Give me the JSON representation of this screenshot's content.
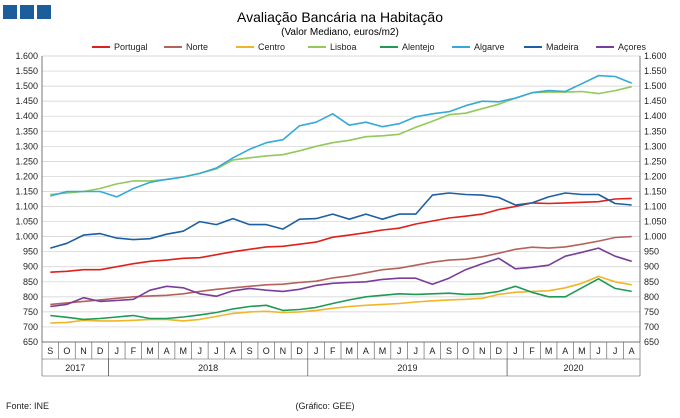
{
  "chart_data": {
    "type": "line",
    "title": "Avaliação Bancária na Habitação",
    "subtitle": "(Valor Mediano, euros/m2)",
    "ylim": [
      650,
      1600
    ],
    "ytick_step": 50,
    "months": [
      "S",
      "O",
      "N",
      "D",
      "J",
      "F",
      "M",
      "A",
      "M",
      "J",
      "J",
      "A",
      "S",
      "O",
      "N",
      "D",
      "J",
      "F",
      "M",
      "A",
      "M",
      "J",
      "J",
      "A",
      "S",
      "O",
      "N",
      "D",
      "J",
      "F",
      "M",
      "A",
      "M",
      "J",
      "J",
      "A"
    ],
    "years": [
      {
        "label": "2017",
        "start": 0,
        "count": 4
      },
      {
        "label": "2018",
        "start": 4,
        "count": 12
      },
      {
        "label": "2019",
        "start": 16,
        "count": 12
      },
      {
        "label": "2020",
        "start": 28,
        "count": 8
      }
    ],
    "series": [
      {
        "name": "Portugal",
        "color": "#e0201b",
        "values": [
          882,
          885,
          890,
          890,
          900,
          910,
          918,
          922,
          928,
          930,
          940,
          950,
          958,
          966,
          968,
          975,
          982,
          998,
          1005,
          1013,
          1022,
          1028,
          1042,
          1052,
          1062,
          1068,
          1075,
          1090,
          1100,
          1112,
          1110,
          1112,
          1114,
          1116,
          1125,
          1127
        ]
      },
      {
        "name": "Norte",
        "color": "#b4635a",
        "values": [
          775,
          780,
          785,
          790,
          795,
          800,
          803,
          805,
          810,
          818,
          825,
          830,
          835,
          840,
          842,
          848,
          852,
          863,
          870,
          880,
          890,
          895,
          905,
          915,
          922,
          925,
          933,
          945,
          958,
          965,
          962,
          966,
          975,
          985,
          997,
          1000
        ]
      },
      {
        "name": "Centro",
        "color": "#f0b529",
        "values": [
          713,
          715,
          722,
          720,
          720,
          722,
          725,
          725,
          720,
          725,
          735,
          745,
          750,
          752,
          748,
          750,
          755,
          762,
          768,
          772,
          775,
          778,
          783,
          787,
          790,
          792,
          795,
          808,
          815,
          818,
          820,
          830,
          845,
          868,
          850,
          840
        ]
      },
      {
        "name": "Lisboa",
        "color": "#92c95a",
        "values": [
          1140,
          1145,
          1150,
          1160,
          1175,
          1185,
          1185,
          1190,
          1198,
          1210,
          1225,
          1255,
          1262,
          1268,
          1272,
          1285,
          1300,
          1312,
          1320,
          1332,
          1335,
          1340,
          1363,
          1383,
          1405,
          1410,
          1425,
          1440,
          1460,
          1478,
          1480,
          1480,
          1482,
          1475,
          1485,
          1498
        ]
      },
      {
        "name": "Alentejo",
        "color": "#1e9a55",
        "values": [
          738,
          732,
          725,
          728,
          733,
          738,
          728,
          728,
          733,
          740,
          748,
          760,
          768,
          772,
          755,
          758,
          765,
          778,
          790,
          800,
          805,
          810,
          808,
          810,
          812,
          808,
          810,
          818,
          835,
          815,
          800,
          800,
          830,
          860,
          828,
          818
        ]
      },
      {
        "name": "Algarve",
        "color": "#35a9d9",
        "values": [
          1135,
          1150,
          1150,
          1150,
          1132,
          1160,
          1180,
          1190,
          1198,
          1210,
          1228,
          1262,
          1290,
          1312,
          1322,
          1368,
          1380,
          1408,
          1370,
          1380,
          1365,
          1375,
          1398,
          1408,
          1415,
          1435,
          1450,
          1448,
          1460,
          1478,
          1485,
          1482,
          1508,
          1535,
          1532,
          1510
        ]
      },
      {
        "name": "Madeira",
        "color": "#1d5fa0",
        "values": [
          962,
          978,
          1005,
          1010,
          995,
          990,
          993,
          1008,
          1018,
          1050,
          1040,
          1060,
          1040,
          1040,
          1025,
          1058,
          1060,
          1075,
          1058,
          1075,
          1058,
          1075,
          1075,
          1138,
          1145,
          1140,
          1138,
          1130,
          1105,
          1112,
          1132,
          1145,
          1140,
          1140,
          1110,
          1105
        ]
      },
      {
        "name": "Açores",
        "color": "#7a3d99",
        "values": [
          768,
          775,
          797,
          785,
          788,
          792,
          822,
          835,
          830,
          810,
          802,
          820,
          828,
          822,
          818,
          825,
          838,
          845,
          848,
          850,
          858,
          862,
          862,
          842,
          862,
          890,
          910,
          928,
          893,
          898,
          905,
          935,
          948,
          962,
          935,
          918
        ]
      }
    ],
    "footer_left": "Fonte: INE",
    "footer_center": "(Gráfico: GEE)"
  },
  "theme": {
    "logo_color": "#1c5d9c",
    "title_color": "#222222",
    "grid_color": "#cfcfcf",
    "axis_color": "#555555"
  }
}
